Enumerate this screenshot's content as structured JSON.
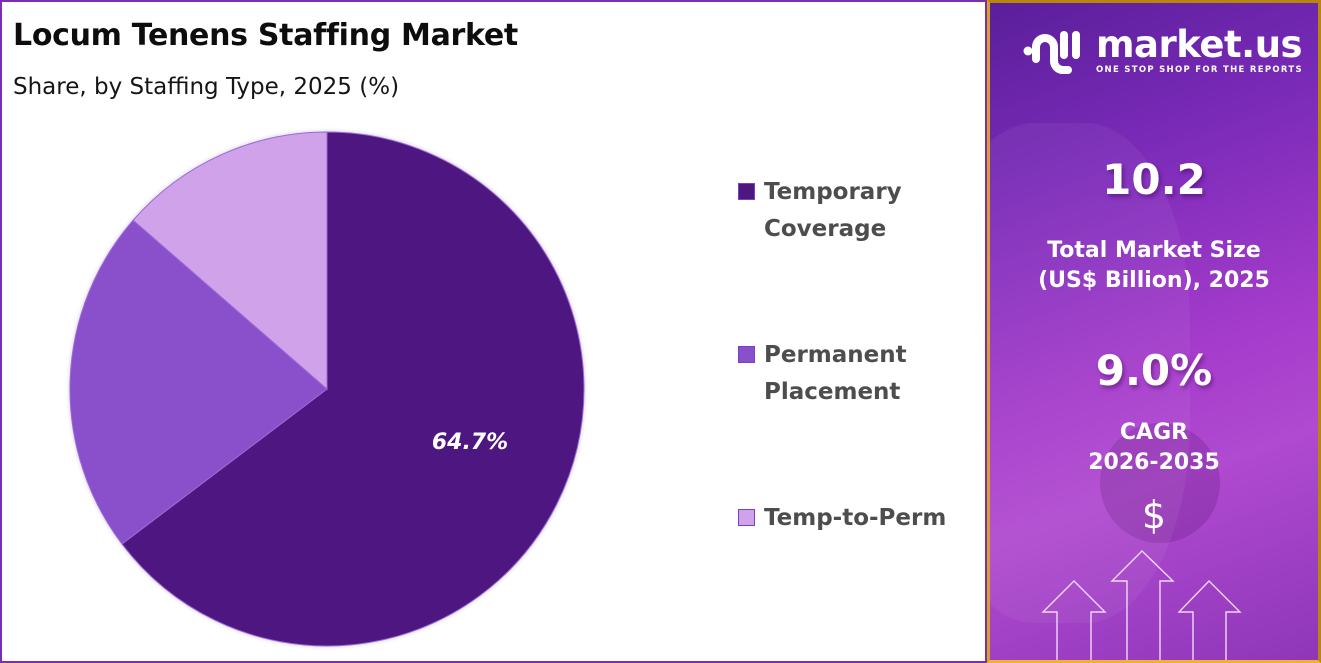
{
  "header": {
    "title": "Locum Tenens Staffing Market",
    "subtitle": "Share, by Staffing Type, 2025 (%)"
  },
  "legend": [
    {
      "label": "Temporary\nCoverage",
      "color": "#4e1780"
    },
    {
      "label": "Permanent\nPlacement",
      "color": "#8a4fcb"
    },
    {
      "label": "Temp-to-Perm",
      "color": "#cfa2ea"
    }
  ],
  "pie_label": "64.7%",
  "sidebar": {
    "brand": "market.us",
    "tagline": "ONE STOP SHOP FOR THE REPORTS",
    "market_size_value": "10.2",
    "market_size_label": "Total Market Size\n(US$ Billion), 2025",
    "cagr_value": "9.0%",
    "cagr_label": "CAGR\n2026-2035",
    "dollar_symbol": "$",
    "icons": [
      "logo-icon",
      "dollar-icon",
      "up-arrow-icon"
    ]
  },
  "chart_data": {
    "type": "pie",
    "title": "Locum Tenens Staffing Market",
    "subtitle": "Share, by Staffing Type, 2025 (%)",
    "categories": [
      "Temporary Coverage",
      "Permanent Placement",
      "Temp-to-Perm"
    ],
    "values": [
      64.7,
      21.7,
      13.6
    ],
    "colors": [
      "#4e1780",
      "#8a4fcb",
      "#cfa2ea"
    ],
    "data_labels": [
      "64.7%",
      "",
      ""
    ],
    "legend_position": "right",
    "start_angle": "12 o'clock, clockwise"
  }
}
